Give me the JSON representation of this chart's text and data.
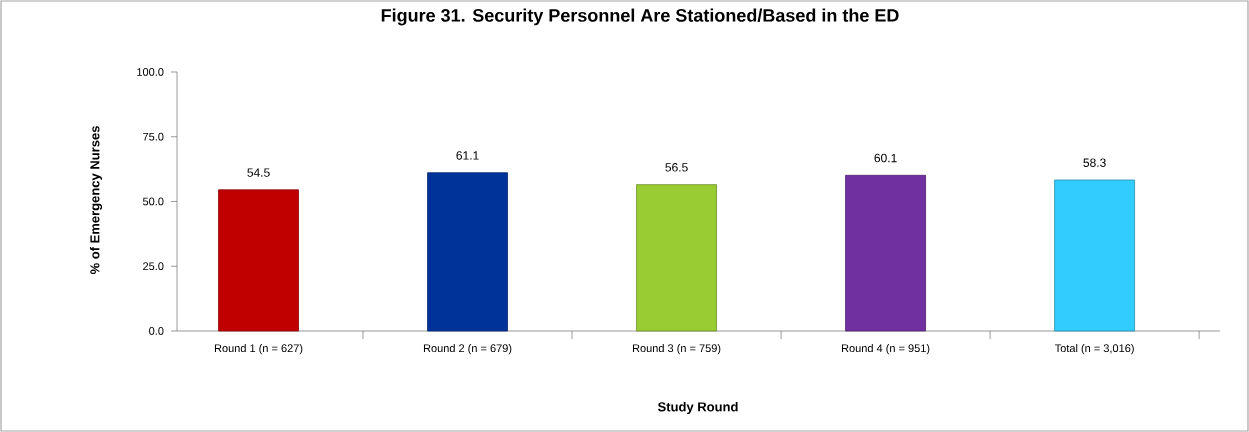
{
  "chart_data": {
    "type": "bar",
    "title": "Figure 31.  Security Personnel Are Stationed/Based in the ED",
    "xlabel": "Study Round",
    "ylabel": "% of Emergency Nurses",
    "categories": [
      "Round 1 (n = 627)",
      "Round 2 (n = 679)",
      "Round 3 (n = 759)",
      "Round 4 (n = 951)",
      "Total (n = 3,016)"
    ],
    "values": [
      54.5,
      61.1,
      56.5,
      60.1,
      58.3
    ],
    "colors": [
      "#c00000",
      "#003399",
      "#99cc33",
      "#7030a0",
      "#33ccff"
    ],
    "ylim": [
      0,
      100
    ],
    "yticks": [
      {
        "value": 0,
        "label": "0.0"
      },
      {
        "value": 25,
        "label": "25.0"
      },
      {
        "value": 50,
        "label": "50.0"
      },
      {
        "value": 75,
        "label": "75.0"
      },
      {
        "value": 100,
        "label": "100.0"
      }
    ],
    "data_labels": true,
    "grid": false
  }
}
